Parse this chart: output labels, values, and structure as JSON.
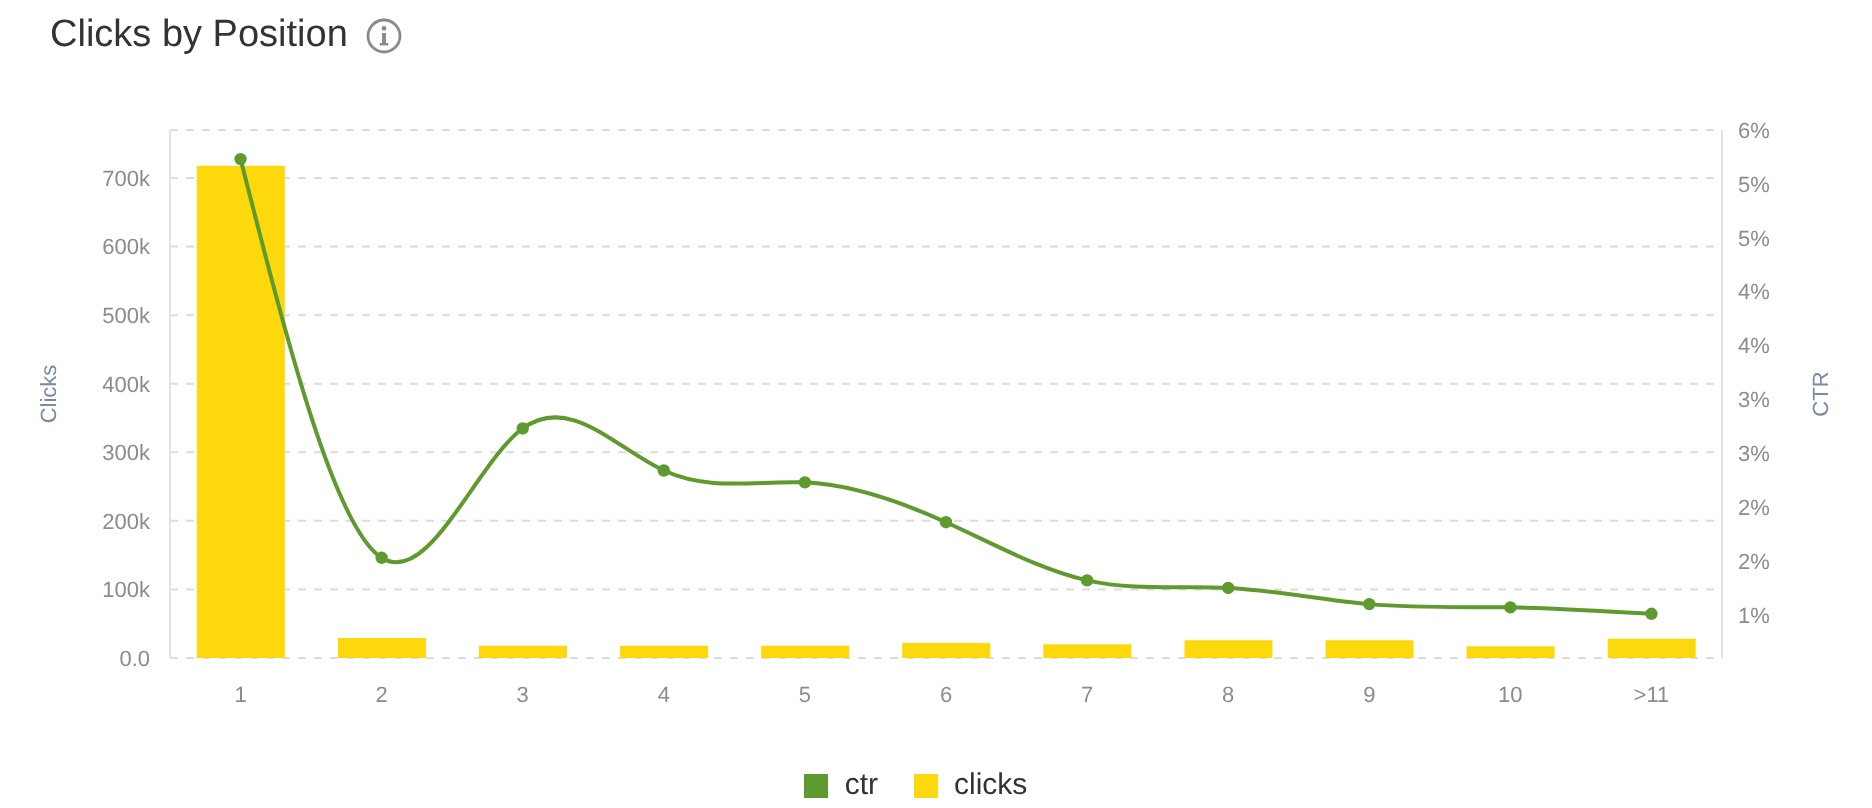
{
  "chart_data": {
    "type": "bar",
    "title": "Clicks by Position",
    "ylabel": "Clicks",
    "y2label": "CTR",
    "categories": [
      "1",
      "2",
      "3",
      "4",
      "5",
      "6",
      "7",
      "8",
      "9",
      "10",
      ">11"
    ],
    "series": [
      {
        "name": "ctr",
        "type": "line",
        "axis": "y2",
        "color": "#5f9a2e",
        "values": [
          5.23,
          1.53,
          2.73,
          2.34,
          2.23,
          1.86,
          1.32,
          1.25,
          1.1,
          1.07,
          1.01
        ]
      },
      {
        "name": "clicks",
        "color": "#fdd80c",
        "values": [
          718000,
          29000,
          18000,
          18000,
          18000,
          22000,
          20000,
          26000,
          26000,
          17000,
          28000
        ]
      }
    ],
    "ylim": [
      0,
      770000
    ],
    "yticks": [
      {
        "value": 0,
        "label": "0.0"
      },
      {
        "value": 100000,
        "label": "100k"
      },
      {
        "value": 200000,
        "label": "200k"
      },
      {
        "value": 300000,
        "label": "300k"
      },
      {
        "value": 400000,
        "label": "400k"
      },
      {
        "value": 500000,
        "label": "500k"
      },
      {
        "value": 600000,
        "label": "600k"
      },
      {
        "value": 700000,
        "label": "700k"
      }
    ],
    "y2lim": [
      0.6,
      5.5
    ],
    "y2ticks": [
      {
        "value": 1,
        "label": "1%"
      },
      {
        "value": 1.5,
        "label": "2%"
      },
      {
        "value": 2,
        "label": "2%"
      },
      {
        "value": 2.5,
        "label": "3%"
      },
      {
        "value": 3,
        "label": "3%"
      },
      {
        "value": 3.5,
        "label": "4%"
      },
      {
        "value": 4,
        "label": "4%"
      },
      {
        "value": 4.5,
        "label": "5%"
      },
      {
        "value": 5,
        "label": "5%"
      },
      {
        "value": 5.5,
        "label": "6%"
      }
    ],
    "grid": "y",
    "legend": "bottom",
    "marker": "circle"
  }
}
